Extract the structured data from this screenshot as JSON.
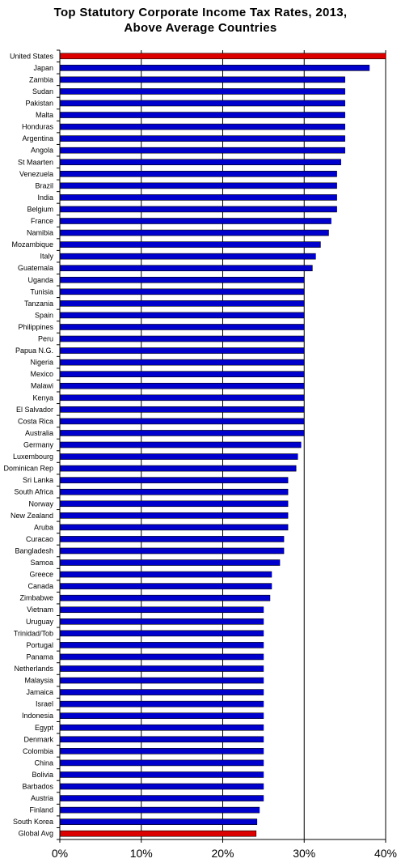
{
  "chart_data": {
    "type": "bar",
    "orientation": "horizontal",
    "title_lines": [
      "Top Statutory Corporate Income Tax Rates, 2013,",
      "Above Average Countries"
    ],
    "xlim": [
      0,
      40
    ],
    "x_ticks": [
      {
        "value": 0,
        "label": "0%"
      },
      {
        "value": 10,
        "label": "10%"
      },
      {
        "value": 20,
        "label": "20%"
      },
      {
        "value": 30,
        "label": "30%"
      },
      {
        "value": 40,
        "label": "40%"
      }
    ],
    "grid": "vertical gridlines",
    "legend": "none",
    "colors": {
      "default": "#0000cc",
      "highlight": "#dd0000"
    },
    "categories": [
      "United States",
      "Japan",
      "Zambia",
      "Sudan",
      "Pakistan",
      "Malta",
      "Honduras",
      "Argentina",
      "Angola",
      "St Maarten",
      "Venezuela",
      "Brazil",
      "India",
      "Belgium",
      "France",
      "Namibia",
      "Mozambique",
      "Italy",
      "Guatemala",
      "Uganda",
      "Tunisia",
      "Tanzania",
      "Spain",
      "Philippines",
      "Peru",
      "Papua N.G.",
      "Nigeria",
      "Mexico",
      "Malawi",
      "Kenya",
      "El Salvador",
      "Costa Rica",
      "Australia",
      "Germany",
      "Luxembourg",
      "Dominican Rep",
      "Sri Lanka",
      "South Africa",
      "Norway",
      "New Zealand",
      "Aruba",
      "Curacao",
      "Bangladesh",
      "Samoa",
      "Greece",
      "Canada",
      "Zimbabwe",
      "Vietnam",
      "Uruguay",
      "Trinidad/Tob",
      "Portugal",
      "Panama",
      "Netherlands",
      "Malaysia",
      "Jamaica",
      "Israel",
      "Indonesia",
      "Egypt",
      "Denmark",
      "Colombia",
      "China",
      "Bolivia",
      "Barbados",
      "Austria",
      "Finland",
      "South Korea",
      "Global Avg"
    ],
    "values": [
      40.0,
      38.0,
      35.0,
      35.0,
      35.0,
      35.0,
      35.0,
      35.0,
      35.0,
      34.5,
      34.0,
      34.0,
      34.0,
      34.0,
      33.3,
      33.0,
      32.0,
      31.4,
      31.0,
      30.0,
      30.0,
      30.0,
      30.0,
      30.0,
      30.0,
      30.0,
      30.0,
      30.0,
      30.0,
      30.0,
      30.0,
      30.0,
      30.0,
      29.6,
      29.2,
      29.0,
      28.0,
      28.0,
      28.0,
      28.0,
      28.0,
      27.5,
      27.5,
      27.0,
      26.0,
      26.0,
      25.8,
      25.0,
      25.0,
      25.0,
      25.0,
      25.0,
      25.0,
      25.0,
      25.0,
      25.0,
      25.0,
      25.0,
      25.0,
      25.0,
      25.0,
      25.0,
      25.0,
      25.0,
      24.5,
      24.2,
      24.1
    ],
    "highlight": [
      "United States",
      "Global Avg"
    ]
  }
}
